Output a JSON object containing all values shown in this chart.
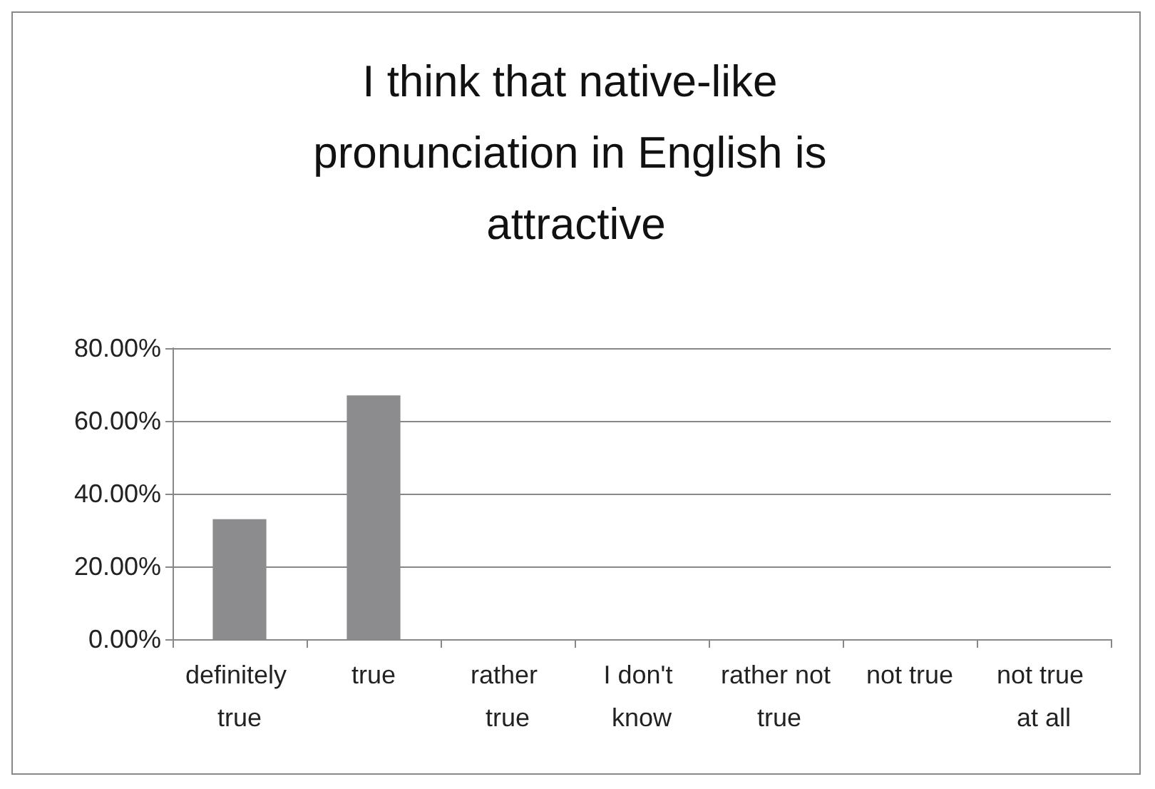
{
  "chart_data": {
    "type": "bar",
    "title": "I think that native-like pronunciation in English is attractive",
    "categories": [
      "definitely true",
      "true",
      "rather true",
      "I don't know",
      "rather not true",
      "not true",
      "not true at all"
    ],
    "values": [
      33,
      67,
      0,
      0,
      0,
      0,
      0
    ],
    "color": "#8c8c8e",
    "ylim": [
      0,
      80
    ],
    "yticks": [
      {
        "value": 0,
        "label": "0.00%"
      },
      {
        "value": 20,
        "label": "20.00%"
      },
      {
        "value": 40,
        "label": "40.00%"
      },
      {
        "value": 60,
        "label": "60.00%"
      },
      {
        "value": 80,
        "label": "80.00%"
      }
    ],
    "grid": "y"
  }
}
